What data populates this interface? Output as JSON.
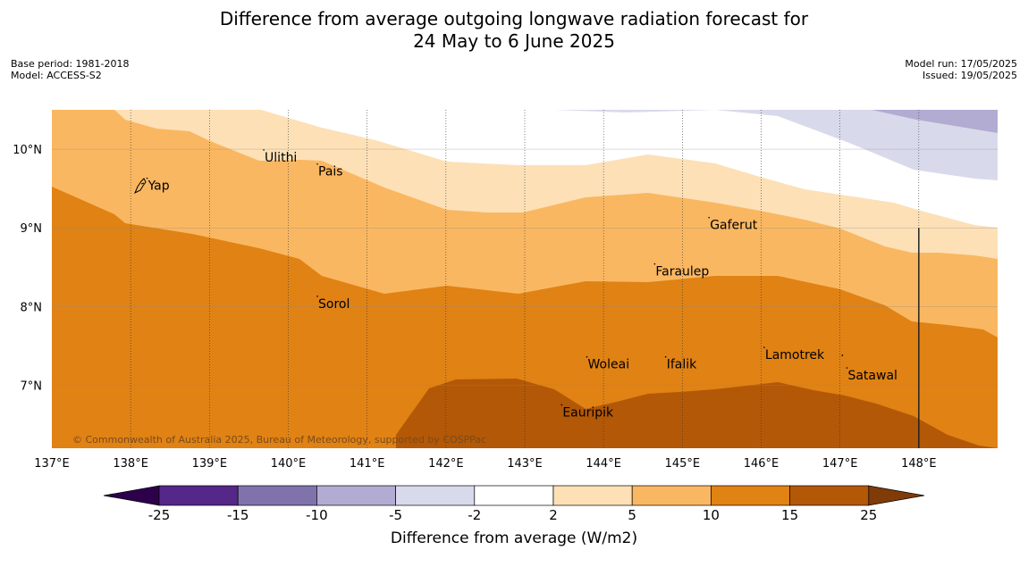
{
  "title": {
    "line1": "Difference from average outgoing longwave radiation forecast for",
    "line2": "24 May to 6 June 2025"
  },
  "meta_left": {
    "base_period": "Base period: 1981-2018",
    "model": "Model: ACCESS-S2"
  },
  "meta_right": {
    "model_run": "Model run: 17/05/2025",
    "issued": "Issued: 19/05/2025"
  },
  "map": {
    "lon_range": [
      137,
      149
    ],
    "lat_range": [
      6.2,
      10.5
    ],
    "lon_ticks": [
      {
        "value": 137,
        "label": "137°E"
      },
      {
        "value": 138,
        "label": "138°E"
      },
      {
        "value": 139,
        "label": "139°E"
      },
      {
        "value": 140,
        "label": "140°E"
      },
      {
        "value": 141,
        "label": "141°E"
      },
      {
        "value": 142,
        "label": "142°E"
      },
      {
        "value": 143,
        "label": "143°E"
      },
      {
        "value": 144,
        "label": "144°E"
      },
      {
        "value": 145,
        "label": "145°E"
      },
      {
        "value": 146,
        "label": "146°E"
      },
      {
        "value": 147,
        "label": "147°E"
      },
      {
        "value": 148,
        "label": "148°E"
      }
    ],
    "lat_ticks": [
      {
        "value": 10,
        "label": "10°N"
      },
      {
        "value": 9,
        "label": "9°N"
      },
      {
        "value": 8,
        "label": "8°N"
      },
      {
        "value": 7,
        "label": "7°N"
      }
    ],
    "places": [
      {
        "name": "Yap",
        "lon": 138.22,
        "lat": 9.54
      },
      {
        "name": "Ulithi",
        "lon": 139.7,
        "lat": 9.9
      },
      {
        "name": "Pais",
        "lon": 140.38,
        "lat": 9.72
      },
      {
        "name": "Gaferut",
        "lon": 145.35,
        "lat": 9.04
      },
      {
        "name": "Faraulep",
        "lon": 144.66,
        "lat": 8.45
      },
      {
        "name": "Sorol",
        "lon": 140.38,
        "lat": 8.04
      },
      {
        "name": "Woleai",
        "lon": 143.8,
        "lat": 7.27
      },
      {
        "name": "Ifalik",
        "lon": 144.8,
        "lat": 7.27
      },
      {
        "name": "Lamotrek",
        "lon": 146.05,
        "lat": 7.39
      },
      {
        "name": "Satawal",
        "lon": 147.1,
        "lat": 7.13
      },
      {
        "name": "Eauripik",
        "lon": 143.48,
        "lat": 6.66
      }
    ],
    "extra_marker": {
      "lon": 147.03,
      "lat": 7.38
    },
    "boundary_line": {
      "lon": 148.0,
      "lat_top": 9.0
    },
    "copyright": "© Commonwealth of Australia 2025, Bureau of Meteorology, supported by COSPPac"
  },
  "colors": {
    "c2_5": "#fde0b6",
    "c5_10": "#fab761",
    "c10_15": "#e08214",
    "c15_25": "#b35806",
    "cn5_n2": "#d8daeb",
    "cn10_n5": "#b2abd2",
    "cn15_n10": "#8073ac",
    "cn25_n15": "#542788",
    "c_low_ext": "#2d004b",
    "c_high_ext": "#7f3b08",
    "white": "#ffffff"
  },
  "colorbar": {
    "ticks": [
      "-25",
      "-15",
      "-10",
      "-5",
      "-2",
      "2",
      "5",
      "10",
      "15",
      "25"
    ],
    "title": "Difference from average (W/m2)"
  }
}
